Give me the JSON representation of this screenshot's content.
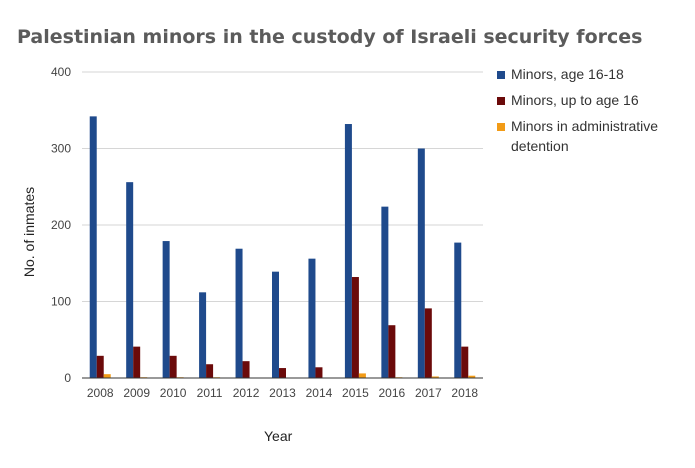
{
  "chart_data": {
    "type": "bar",
    "title": "Palestinian minors in the custody of Israeli security forces",
    "xlabel": "Year",
    "ylabel": "No. of inmates",
    "ylim": [
      0,
      400
    ],
    "yticks": [
      0,
      100,
      200,
      300,
      400
    ],
    "grid": true,
    "legend_position": "right",
    "categories": [
      "2008",
      "2009",
      "2010",
      "2011",
      "2012",
      "2013",
      "2014",
      "2015",
      "2016",
      "2017",
      "2018"
    ],
    "series": [
      {
        "name": "Minors, age 16-18",
        "color": "#1f4a8c",
        "values": [
          342,
          256,
          179,
          112,
          169,
          139,
          156,
          332,
          224,
          300,
          177
        ]
      },
      {
        "name": "Minors, up to age 16",
        "color": "#6b0a0a",
        "values": [
          29,
          41,
          29,
          18,
          22,
          13,
          14,
          132,
          69,
          91,
          41
        ]
      },
      {
        "name": "Minors in administrative detention",
        "color": "#f29b16",
        "values": [
          5,
          1,
          1,
          1,
          0,
          0,
          0,
          6,
          1,
          2,
          3
        ]
      }
    ]
  }
}
